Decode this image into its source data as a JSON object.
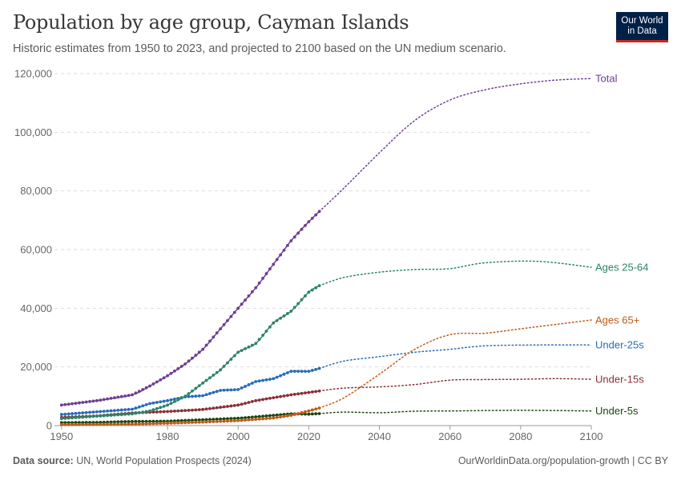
{
  "header": {
    "title": "Population by age group, Cayman Islands",
    "subtitle": "Historic estimates from 1950 to 2023, and projected to 2100 based on the UN medium scenario."
  },
  "logo": {
    "line1": "Our World",
    "line2": "in Data",
    "bg_color": "#002147",
    "accent_color": "#ce261e"
  },
  "footer": {
    "source_label": "Data source:",
    "source_text": "UN, World Population Prospects (2024)",
    "right_text": "OurWorldinData.org/population-growth | CC BY"
  },
  "chart_data": {
    "type": "line",
    "xlim": [
      1948,
      2100
    ],
    "ylim": [
      0,
      120000
    ],
    "x_ticks": [
      "1950",
      "1980",
      "2000",
      "2020",
      "2040",
      "2060",
      "2080",
      "2100"
    ],
    "y_ticks": [
      "0",
      "20,000",
      "40,000",
      "60,000",
      "80,000",
      "100,000",
      "120,000"
    ],
    "grid": true,
    "historic_end_year": 2023,
    "legend_placement": "right, inline labels at line ends",
    "series": [
      {
        "name": "Total",
        "color": "#6d3e91",
        "points": [
          [
            1950,
            7000
          ],
          [
            1960,
            8500
          ],
          [
            1970,
            10500
          ],
          [
            1975,
            13500
          ],
          [
            1980,
            17000
          ],
          [
            1985,
            21000
          ],
          [
            1990,
            26000
          ],
          [
            1995,
            33000
          ],
          [
            2000,
            40000
          ],
          [
            2005,
            47000
          ],
          [
            2010,
            55000
          ],
          [
            2015,
            63000
          ],
          [
            2020,
            69500
          ],
          [
            2023,
            73000
          ],
          [
            2030,
            81000
          ],
          [
            2040,
            93000
          ],
          [
            2050,
            104000
          ],
          [
            2060,
            111000
          ],
          [
            2070,
            114500
          ],
          [
            2080,
            116500
          ],
          [
            2090,
            117800
          ],
          [
            2100,
            118300
          ]
        ]
      },
      {
        "name": "Ages 25-64",
        "color": "#2c8465",
        "points": [
          [
            1950,
            2400
          ],
          [
            1960,
            3200
          ],
          [
            1970,
            4000
          ],
          [
            1975,
            5000
          ],
          [
            1980,
            7000
          ],
          [
            1985,
            10000
          ],
          [
            1990,
            14500
          ],
          [
            1995,
            19000
          ],
          [
            2000,
            25000
          ],
          [
            2005,
            28000
          ],
          [
            2010,
            35000
          ],
          [
            2015,
            39000
          ],
          [
            2020,
            45500
          ],
          [
            2023,
            47700
          ],
          [
            2030,
            50500
          ],
          [
            2040,
            52300
          ],
          [
            2050,
            53200
          ],
          [
            2060,
            53500
          ],
          [
            2070,
            55500
          ],
          [
            2085,
            56000
          ],
          [
            2100,
            54000
          ]
        ]
      },
      {
        "name": "Ages 65+",
        "color": "#c05917",
        "points": [
          [
            1950,
            300
          ],
          [
            1960,
            400
          ],
          [
            1970,
            500
          ],
          [
            1980,
            800
          ],
          [
            1990,
            1200
          ],
          [
            2000,
            1700
          ],
          [
            2010,
            2600
          ],
          [
            2015,
            3500
          ],
          [
            2020,
            5000
          ],
          [
            2023,
            6000
          ],
          [
            2030,
            9500
          ],
          [
            2040,
            17500
          ],
          [
            2050,
            26000
          ],
          [
            2060,
            31000
          ],
          [
            2070,
            31500
          ],
          [
            2080,
            33000
          ],
          [
            2090,
            34500
          ],
          [
            2100,
            36000
          ]
        ]
      },
      {
        "name": "Under-25s",
        "color": "#286bbb",
        "points": [
          [
            1950,
            3800
          ],
          [
            1960,
            4700
          ],
          [
            1970,
            5600
          ],
          [
            1975,
            7500
          ],
          [
            1980,
            8500
          ],
          [
            1985,
            9800
          ],
          [
            1990,
            10200
          ],
          [
            1995,
            12000
          ],
          [
            2000,
            12300
          ],
          [
            2005,
            15000
          ],
          [
            2010,
            16000
          ],
          [
            2015,
            18500
          ],
          [
            2020,
            18500
          ],
          [
            2023,
            19500
          ],
          [
            2030,
            22000
          ],
          [
            2040,
            23500
          ],
          [
            2050,
            25000
          ],
          [
            2060,
            26000
          ],
          [
            2070,
            27200
          ],
          [
            2085,
            27500
          ],
          [
            2100,
            27500
          ]
        ]
      },
      {
        "name": "Under-15s",
        "color": "#883039",
        "points": [
          [
            1950,
            2800
          ],
          [
            1960,
            3300
          ],
          [
            1970,
            4300
          ],
          [
            1980,
            4800
          ],
          [
            1990,
            5500
          ],
          [
            2000,
            7000
          ],
          [
            2005,
            8500
          ],
          [
            2010,
            9500
          ],
          [
            2015,
            10500
          ],
          [
            2020,
            11300
          ],
          [
            2023,
            11800
          ],
          [
            2030,
            12800
          ],
          [
            2040,
            13200
          ],
          [
            2050,
            14000
          ],
          [
            2060,
            15500
          ],
          [
            2070,
            15700
          ],
          [
            2080,
            15800
          ],
          [
            2090,
            16000
          ],
          [
            2100,
            15800
          ]
        ]
      },
      {
        "name": "Under-5s",
        "color": "#18470f",
        "points": [
          [
            1950,
            1000
          ],
          [
            1960,
            1100
          ],
          [
            1970,
            1400
          ],
          [
            1980,
            1500
          ],
          [
            1990,
            2000
          ],
          [
            2000,
            2500
          ],
          [
            2010,
            3500
          ],
          [
            2015,
            4000
          ],
          [
            2020,
            3900
          ],
          [
            2023,
            4100
          ],
          [
            2030,
            4600
          ],
          [
            2040,
            4400
          ],
          [
            2050,
            4900
          ],
          [
            2060,
            5000
          ],
          [
            2080,
            5200
          ],
          [
            2100,
            5000
          ]
        ]
      }
    ]
  }
}
